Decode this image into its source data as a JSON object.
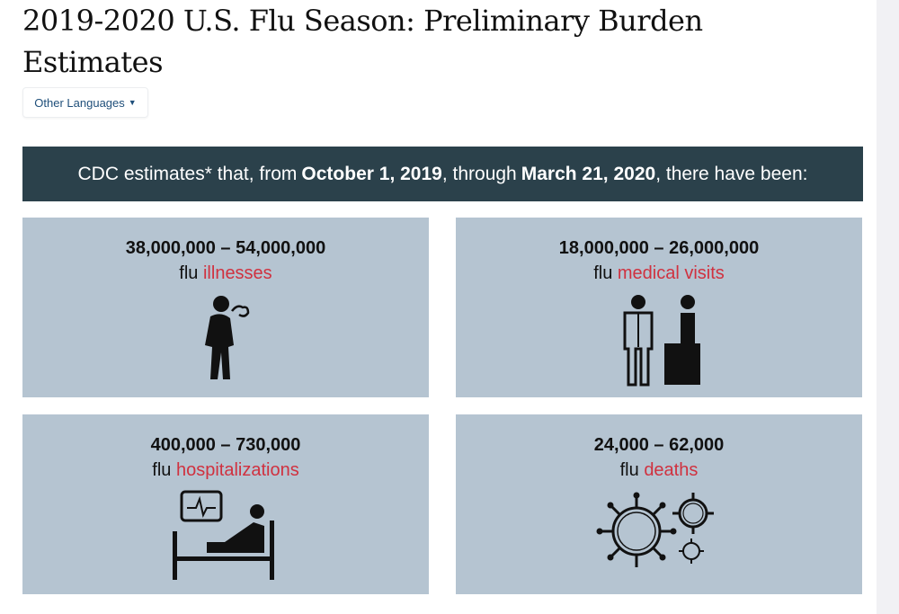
{
  "page": {
    "title": "2019-2020 U.S. Flu Season: Preliminary Burden Estimates",
    "languages_button": "Other Languages"
  },
  "banner": {
    "prefix": "CDC estimates* that, from",
    "start_date": "October 1, 2019",
    "middle": ", through",
    "end_date": "March 21, 2020",
    "suffix": ", there have been:"
  },
  "cards": [
    {
      "range": "38,000,000 – 54,000,000",
      "prefix": "flu",
      "label": "illnesses",
      "icon": "sick-person-icon"
    },
    {
      "range": "18,000,000 – 26,000,000",
      "prefix": "flu",
      "label": "medical visits",
      "icon": "doctor-patient-icon"
    },
    {
      "range": "400,000 – 730,000",
      "prefix": "flu",
      "label": "hospitalizations",
      "icon": "hospital-bed-icon"
    },
    {
      "range": "24,000 – 62,000",
      "prefix": "flu",
      "label": "deaths",
      "icon": "virus-icon"
    }
  ],
  "colors": {
    "banner": "#2b414b",
    "card": "#b5c4d1",
    "accent": "#d0313f"
  }
}
